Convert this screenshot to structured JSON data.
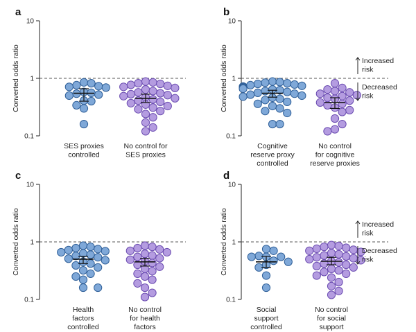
{
  "colors": {
    "blue_fill": "#7fa8d8",
    "blue_stroke": "#2f5f98",
    "purple_fill": "#b49ce0",
    "purple_stroke": "#6a4bb0",
    "axis": "#222222",
    "reference_line": "#555555"
  },
  "chart_data": [
    {
      "panel_label": "a",
      "type": "scatter",
      "ylabel": "Converted odds ratio",
      "y_scale": "log",
      "ylim": [
        0.1,
        10
      ],
      "y_ticks": [
        "10",
        "1",
        "0.1"
      ],
      "reference_line": 1,
      "annotations": [],
      "groups": [
        {
          "label_lines": [
            "SES proxies",
            "controlled"
          ],
          "color": "blue",
          "median": 0.55,
          "ci": [
            0.4,
            0.66
          ],
          "values": [
            0.85,
            0.82,
            0.76,
            0.73,
            0.71,
            0.69,
            0.58,
            0.56,
            0.54,
            0.52,
            0.5,
            0.41,
            0.4,
            0.34,
            0.3,
            0.16
          ]
        },
        {
          "label_lines": [
            "No control for",
            "SES proxies"
          ],
          "color": "purple",
          "median": 0.45,
          "ci": [
            0.38,
            0.53
          ],
          "values": [
            0.88,
            0.85,
            0.82,
            0.8,
            0.77,
            0.74,
            0.71,
            0.68,
            0.64,
            0.6,
            0.57,
            0.55,
            0.53,
            0.51,
            0.49,
            0.47,
            0.45,
            0.43,
            0.41,
            0.39,
            0.37,
            0.35,
            0.33,
            0.31,
            0.29,
            0.27,
            0.24,
            0.21,
            0.17,
            0.14,
            0.12
          ]
        }
      ]
    },
    {
      "panel_label": "b",
      "type": "scatter",
      "ylabel": "Converted odds ratio",
      "y_scale": "log",
      "ylim": [
        0.1,
        10
      ],
      "y_ticks": [
        "10",
        "1",
        "0.1"
      ],
      "reference_line": 1,
      "annotations": [
        {
          "lines": [
            "Increased",
            "risk"
          ],
          "direction": "up"
        },
        {
          "lines": [
            "Decreased",
            "risk"
          ],
          "direction": "down"
        }
      ],
      "groups": [
        {
          "label_lines": [
            "Cognitive",
            "reserve proxy",
            "controlled"
          ],
          "color": "blue",
          "median": 0.55,
          "ci": [
            0.47,
            0.62
          ],
          "values": [
            0.88,
            0.86,
            0.84,
            0.82,
            0.8,
            0.78,
            0.76,
            0.74,
            0.72,
            0.7,
            0.68,
            0.66,
            0.64,
            0.62,
            0.6,
            0.58,
            0.56,
            0.54,
            0.52,
            0.5,
            0.48,
            0.46,
            0.44,
            0.42,
            0.39,
            0.36,
            0.33,
            0.3,
            0.27,
            0.25,
            0.16,
            0.16
          ]
        },
        {
          "label_lines": [
            "No control",
            "for cognitive",
            "reserve proxies"
          ],
          "color": "purple",
          "median": 0.38,
          "ci": [
            0.3,
            0.46
          ],
          "values": [
            0.82,
            0.68,
            0.64,
            0.6,
            0.57,
            0.54,
            0.51,
            0.49,
            0.46,
            0.44,
            0.41,
            0.38,
            0.36,
            0.34,
            0.31,
            0.28,
            0.26,
            0.2,
            0.16,
            0.13,
            0.12
          ]
        }
      ]
    },
    {
      "panel_label": "c",
      "type": "scatter",
      "ylabel": "Converted odds ratio",
      "y_scale": "log",
      "ylim": [
        0.1,
        10
      ],
      "y_ticks": [
        "10",
        "1",
        "0.1"
      ],
      "reference_line": 1,
      "annotations": [],
      "groups": [
        {
          "label_lines": [
            "Health",
            "factors",
            "controlled"
          ],
          "color": "blue",
          "median": 0.5,
          "ci": [
            0.42,
            0.56
          ],
          "values": [
            0.86,
            0.82,
            0.78,
            0.75,
            0.72,
            0.69,
            0.66,
            0.63,
            0.6,
            0.57,
            0.54,
            0.51,
            0.48,
            0.45,
            0.42,
            0.39,
            0.36,
            0.32,
            0.28,
            0.25,
            0.22,
            0.16,
            0.16
          ]
        },
        {
          "label_lines": [
            "No control",
            "for health",
            "factors"
          ],
          "color": "purple",
          "median": 0.45,
          "ci": [
            0.38,
            0.52
          ],
          "values": [
            0.86,
            0.82,
            0.78,
            0.74,
            0.7,
            0.66,
            0.62,
            0.58,
            0.55,
            0.52,
            0.49,
            0.46,
            0.43,
            0.4,
            0.37,
            0.34,
            0.31,
            0.28,
            0.25,
            0.22,
            0.19,
            0.16,
            0.13,
            0.11
          ]
        }
      ]
    },
    {
      "panel_label": "d",
      "type": "scatter",
      "ylabel": "Converted odds ratio",
      "y_scale": "log",
      "ylim": [
        0.1,
        10
      ],
      "y_ticks": [
        "10",
        "1",
        "0.1"
      ],
      "reference_line": 1,
      "annotations": [
        {
          "lines": [
            "Increased",
            "risk"
          ],
          "direction": "up"
        },
        {
          "lines": [
            "Decreased",
            "risk"
          ],
          "direction": "down"
        }
      ],
      "groups": [
        {
          "label_lines": [
            "Social",
            "support",
            "controlled"
          ],
          "color": "blue",
          "median": 0.45,
          "ci": [
            0.36,
            0.56
          ],
          "values": [
            0.75,
            0.7,
            0.57,
            0.55,
            0.55,
            0.55,
            0.47,
            0.45,
            0.4,
            0.36,
            0.26,
            0.16
          ]
        },
        {
          "label_lines": [
            "No control",
            "for social",
            "support"
          ],
          "color": "purple",
          "median": 0.46,
          "ci": [
            0.4,
            0.54
          ],
          "values": [
            0.88,
            0.85,
            0.82,
            0.79,
            0.76,
            0.73,
            0.7,
            0.67,
            0.64,
            0.61,
            0.58,
            0.56,
            0.54,
            0.52,
            0.5,
            0.48,
            0.46,
            0.44,
            0.42,
            0.4,
            0.38,
            0.36,
            0.34,
            0.32,
            0.3,
            0.28,
            0.26,
            0.24,
            0.2,
            0.17,
            0.14,
            0.12
          ]
        }
      ]
    }
  ]
}
